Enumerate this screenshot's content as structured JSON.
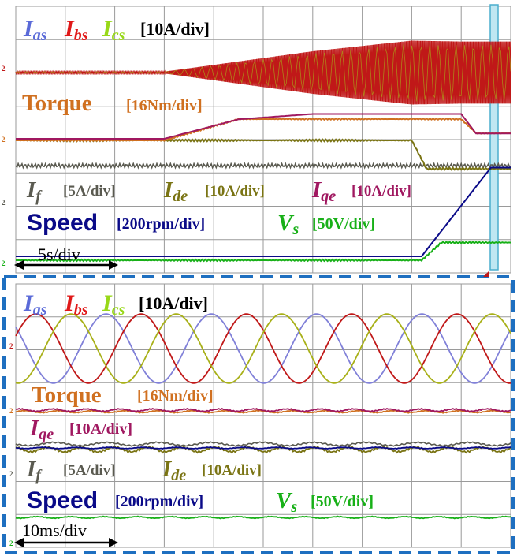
{
  "colors": {
    "ias": "#8080d8",
    "ibs": "#c01818",
    "ics": "#a8b018",
    "torque": "#d07020",
    "iqe": "#a01860",
    "ide": "#7a7414",
    "if": "#5a5a50",
    "speed": "#0a0a88",
    "vs": "#18b018",
    "grid": "#9a9a9a",
    "frame": "#1e6fc0",
    "marker": "#8fd6e8"
  },
  "top": {
    "labels": {
      "ias": "I",
      "ias_sub": "as",
      "ibs": "I",
      "ibs_sub": "bs",
      "ics": "I",
      "ics_sub": "cs",
      "currents_scale": "[10A/div]",
      "torque": "Torque",
      "torque_scale": "[16Nm/div]",
      "if": "I",
      "if_sub": "f",
      "if_scale": "[5A/div]",
      "ide": "I",
      "ide_sub": "de",
      "ide_scale": "[10A/div]",
      "iqe": "I",
      "iqe_sub": "qe",
      "iqe_scale": "[10A/div]",
      "speed": "Speed",
      "speed_scale": "[200rpm/div]",
      "vs": "V",
      "vs_sub": "s",
      "vs_scale": "[50V/div]",
      "timebase": "5s/div"
    },
    "markers": [
      "2",
      "2",
      "2",
      "2"
    ]
  },
  "bottom": {
    "labels": {
      "ias": "I",
      "ias_sub": "as",
      "ibs": "I",
      "ibs_sub": "bs",
      "ics": "I",
      "ics_sub": "cs",
      "currents_scale": "[10A/div]",
      "torque": "Torque",
      "torque_scale": "[16Nm/div]",
      "iqe": "I",
      "iqe_sub": "qe",
      "iqe_scale": "[10A/div]",
      "if": "I",
      "if_sub": "f",
      "if_scale": "[5A/div]",
      "ide": "I",
      "ide_sub": "de",
      "ide_scale": "[10A/div]",
      "speed": "Speed",
      "speed_scale": "[200rpm/div]",
      "vs": "V",
      "vs_sub": "s",
      "vs_scale": "[50V/div]",
      "timebase": "10ms/div"
    },
    "markers": [
      "2",
      "2",
      "2",
      "2"
    ]
  },
  "chart_data": [
    {
      "type": "line",
      "title": "",
      "grid": true,
      "x_divisions": 10,
      "series": [
        {
          "name": "I_bs (current envelope)",
          "points": [
            [
              0,
              0.05
            ],
            [
              3,
              0.05
            ],
            [
              6,
              1.2
            ],
            [
              8,
              1.8
            ],
            [
              9,
              1.75
            ],
            [
              10,
              1.75
            ]
          ]
        },
        {
          "name": "Torque",
          "points": [
            [
              0,
              0
            ],
            [
              3,
              0
            ],
            [
              4.5,
              0.6
            ],
            [
              6,
              0.6
            ],
            [
              9,
              0.6
            ],
            [
              9.3,
              0.2
            ],
            [
              10,
              0.2
            ]
          ]
        },
        {
          "name": "I_qe",
          "points": [
            [
              0,
              0
            ],
            [
              3,
              0
            ],
            [
              4.5,
              0.55
            ],
            [
              6,
              0.7
            ],
            [
              9,
              0.7
            ],
            [
              9.3,
              0.15
            ],
            [
              10,
              0.15
            ]
          ]
        },
        {
          "name": "I_de",
          "points": [
            [
              0,
              0
            ],
            [
              8,
              0
            ],
            [
              8.3,
              -0.8
            ],
            [
              10,
              -0.8
            ]
          ]
        },
        {
          "name": "Speed",
          "points": [
            [
              0,
              0
            ],
            [
              8.2,
              0
            ],
            [
              9.6,
              2.5
            ],
            [
              10,
              2.5
            ]
          ]
        },
        {
          "name": "V_s",
          "points": [
            [
              0,
              0
            ],
            [
              8.2,
              0
            ],
            [
              8.6,
              0.5
            ],
            [
              10,
              0.5
            ]
          ]
        }
      ]
    },
    {
      "type": "line",
      "title": "",
      "grid": true,
      "x_divisions": 10,
      "series": [
        {
          "name": "I_as",
          "amplitude": 1.05,
          "periods_on_screen": 4.7,
          "phase_deg": 0
        },
        {
          "name": "I_bs",
          "amplitude": 1.05,
          "periods_on_screen": 4.7,
          "phase_deg": 120
        },
        {
          "name": "I_cs",
          "amplitude": 1.05,
          "periods_on_screen": 4.7,
          "phase_deg": 240
        },
        {
          "name": "Torque",
          "level_div": 0
        },
        {
          "name": "I_qe",
          "level_div": 0
        },
        {
          "name": "I_de",
          "level_div": 0
        },
        {
          "name": "Speed",
          "level_div": 0
        },
        {
          "name": "V_s",
          "level_div": 0
        }
      ]
    }
  ]
}
